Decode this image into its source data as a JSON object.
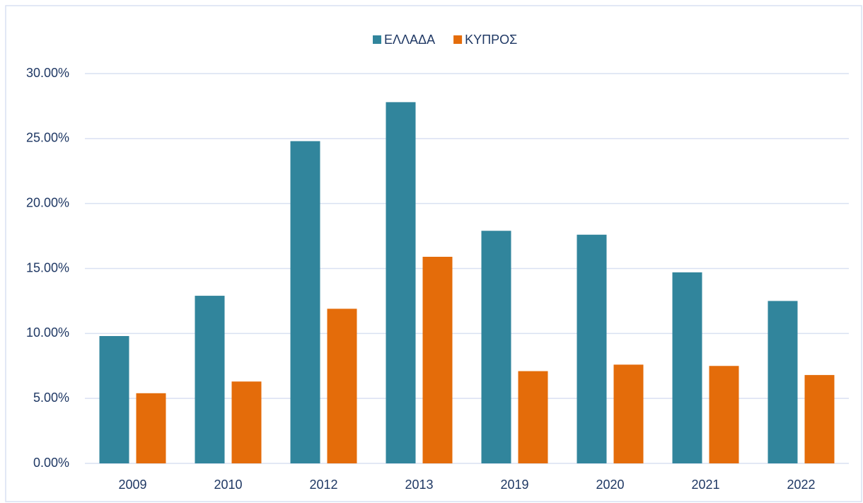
{
  "chart_data": {
    "type": "bar",
    "categories": [
      "2009",
      "2010",
      "2012",
      "2013",
      "2019",
      "2020",
      "2021",
      "2022"
    ],
    "series": [
      {
        "name": "ΕΛΛΑΔΑ",
        "color": "#31859c",
        "values": [
          9.8,
          12.9,
          24.8,
          27.8,
          17.9,
          17.6,
          14.7,
          12.5
        ]
      },
      {
        "name": "ΚΥΠΡΟΣ",
        "color": "#e46c0a",
        "values": [
          5.4,
          6.3,
          11.9,
          15.9,
          7.1,
          7.6,
          7.5,
          6.8
        ]
      }
    ],
    "ylim": [
      0,
      30
    ],
    "yticks": [
      {
        "value": 0,
        "label": "0.00%"
      },
      {
        "value": 5,
        "label": "5.00%"
      },
      {
        "value": 10,
        "label": "10.00%"
      },
      {
        "value": 15,
        "label": "15.00%"
      },
      {
        "value": 20,
        "label": "20.00%"
      },
      {
        "value": 25,
        "label": "25.00%"
      },
      {
        "value": 30,
        "label": "30.00%"
      }
    ],
    "grid": true,
    "legend": "top"
  }
}
